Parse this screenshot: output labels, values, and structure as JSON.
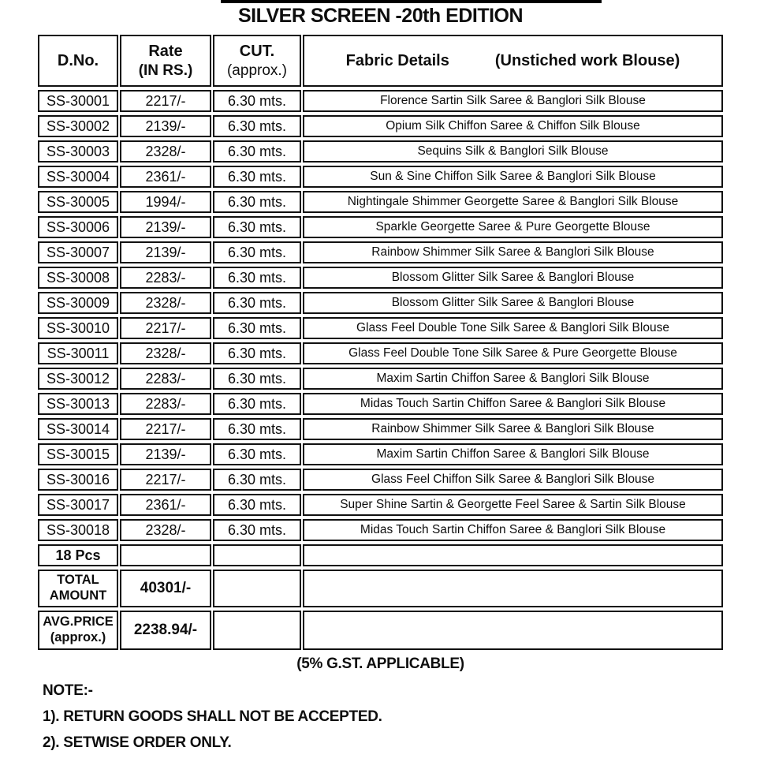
{
  "title": "SILVER SCREEN -20th EDITION",
  "table": {
    "headers": {
      "dno": "D.No.",
      "rate_line1": "Rate",
      "rate_line2": "(IN RS.)",
      "cut_line1": "CUT.",
      "cut_line2": "(approx.)",
      "fabric": "Fabric Details",
      "fabric_note": "(Unstiched work Blouse)"
    },
    "rows": [
      {
        "dno": "SS-30001",
        "rate": "2217/-",
        "cut": "6.30 mts.",
        "fabric": "Florence Sartin Silk Saree & Banglori Silk Blouse"
      },
      {
        "dno": "SS-30002",
        "rate": "2139/-",
        "cut": "6.30 mts.",
        "fabric": "Opium Silk Chiffon Saree & Chiffon Silk Blouse"
      },
      {
        "dno": "SS-30003",
        "rate": "2328/-",
        "cut": "6.30 mts.",
        "fabric": "Sequins Silk & Banglori Silk Blouse"
      },
      {
        "dno": "SS-30004",
        "rate": "2361/-",
        "cut": "6.30 mts.",
        "fabric": "Sun & Sine Chiffon Silk Saree & Banglori Silk Blouse"
      },
      {
        "dno": "SS-30005",
        "rate": "1994/-",
        "cut": "6.30 mts.",
        "fabric": "Nightingale Shimmer Georgette Saree & Banglori Silk Blouse"
      },
      {
        "dno": "SS-30006",
        "rate": "2139/-",
        "cut": "6.30 mts.",
        "fabric": "Sparkle Georgette Saree & Pure Georgette Blouse"
      },
      {
        "dno": "SS-30007",
        "rate": "2139/-",
        "cut": "6.30 mts.",
        "fabric": "Rainbow Shimmer Silk Saree & Banglori Silk Blouse"
      },
      {
        "dno": "SS-30008",
        "rate": "2283/-",
        "cut": "6.30 mts.",
        "fabric": "Blossom Glitter Silk Saree & Banglori Blouse"
      },
      {
        "dno": "SS-30009",
        "rate": "2328/-",
        "cut": "6.30 mts.",
        "fabric": "Blossom Glitter Silk Saree & Banglori Blouse"
      },
      {
        "dno": "SS-30010",
        "rate": "2217/-",
        "cut": "6.30 mts.",
        "fabric": "Glass Feel Double Tone Silk Saree & Banglori Silk Blouse"
      },
      {
        "dno": "SS-30011",
        "rate": "2328/-",
        "cut": "6.30 mts.",
        "fabric": "Glass Feel Double Tone Silk Saree & Pure Georgette Blouse"
      },
      {
        "dno": "SS-30012",
        "rate": "2283/-",
        "cut": "6.30 mts.",
        "fabric": "Maxim Sartin Chiffon Saree & Banglori Silk Blouse"
      },
      {
        "dno": "SS-30013",
        "rate": "2283/-",
        "cut": "6.30 mts.",
        "fabric": "Midas Touch Sartin Chiffon Saree & Banglori Silk Blouse"
      },
      {
        "dno": "SS-30014",
        "rate": "2217/-",
        "cut": "6.30 mts.",
        "fabric": "Rainbow Shimmer Silk Saree & Banglori Silk Blouse"
      },
      {
        "dno": "SS-30015",
        "rate": "2139/-",
        "cut": "6.30 mts.",
        "fabric": "Maxim Sartin Chiffon Saree & Banglori Silk Blouse"
      },
      {
        "dno": "SS-30016",
        "rate": "2217/-",
        "cut": "6.30 mts.",
        "fabric": "Glass Feel Chiffon Silk Saree & Banglori Silk Blouse"
      },
      {
        "dno": "SS-30017",
        "rate": "2361/-",
        "cut": "6.30 mts.",
        "fabric": "Super Shine Sartin & Georgette Feel Saree & Sartin Silk Blouse"
      },
      {
        "dno": "SS-30018",
        "rate": "2328/-",
        "cut": "6.30 mts.",
        "fabric": "Midas Touch Sartin Chiffon Saree & Banglori Silk Blouse"
      }
    ],
    "summary": {
      "pieces": "18 Pcs",
      "total_label_line1": "TOTAL",
      "total_label_line2": "AMOUNT",
      "total_value": "40301/-",
      "avg_label_line1": "AVG.PRICE",
      "avg_label_line2": "(approx.)",
      "avg_value": "2238.94/-"
    }
  },
  "gst_note": "(5% G.ST. APPLICABLE)",
  "notes": {
    "heading": "NOTE:-",
    "items": [
      "1). RETURN GOODS SHALL NOT BE ACCEPTED.",
      "2). SETWISE ORDER ONLY."
    ]
  }
}
